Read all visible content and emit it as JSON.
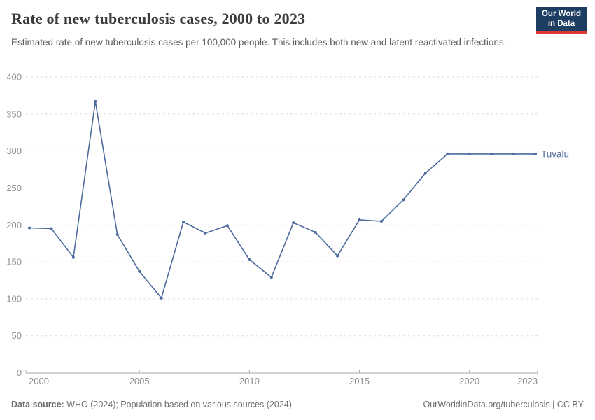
{
  "header": {
    "title": "Rate of new tuberculosis cases, 2000 to 2023",
    "subtitle": "Estimated rate of new tuberculosis cases per 100,000 people. This includes both new and latent reactivated infections."
  },
  "logo": {
    "line1": "Our World",
    "line2": "in Data",
    "bg_color": "#1d3d63",
    "accent_color": "#dc3a32"
  },
  "footer": {
    "source_label": "Data source:",
    "source_text": " WHO (2024); Population based on various sources (2024)",
    "link_text": "OurWorldinData.org/tuberculosis | CC BY"
  },
  "chart_data": {
    "type": "line",
    "title": "Rate of new tuberculosis cases, 2000 to 2023",
    "x": [
      2000,
      2001,
      2002,
      2003,
      2004,
      2005,
      2006,
      2007,
      2008,
      2009,
      2010,
      2011,
      2012,
      2013,
      2014,
      2015,
      2016,
      2017,
      2018,
      2019,
      2020,
      2021,
      2022,
      2023
    ],
    "series": [
      {
        "name": "Tuvalu",
        "color": "#4c6a9c",
        "values": [
          196,
          195,
          156,
          367,
          187,
          137,
          101,
          204,
          189,
          199,
          153,
          129,
          203,
          190,
          158,
          207,
          205,
          234,
          270,
          296,
          296,
          296,
          296,
          296
        ]
      }
    ],
    "xlabel": "",
    "ylabel": "",
    "ylim": [
      0,
      400
    ],
    "yticks": [
      0,
      50,
      100,
      150,
      200,
      250,
      300,
      350,
      400
    ],
    "xticks": [
      2000,
      2005,
      2010,
      2015,
      2020,
      2023
    ],
    "grid": "horizontal-dashed",
    "legend": "end-of-line-label",
    "marker": "dot",
    "grid_color": "#dedede",
    "axis_color": "#a9a9a9",
    "tick_label_color": "#8c8c8c"
  }
}
